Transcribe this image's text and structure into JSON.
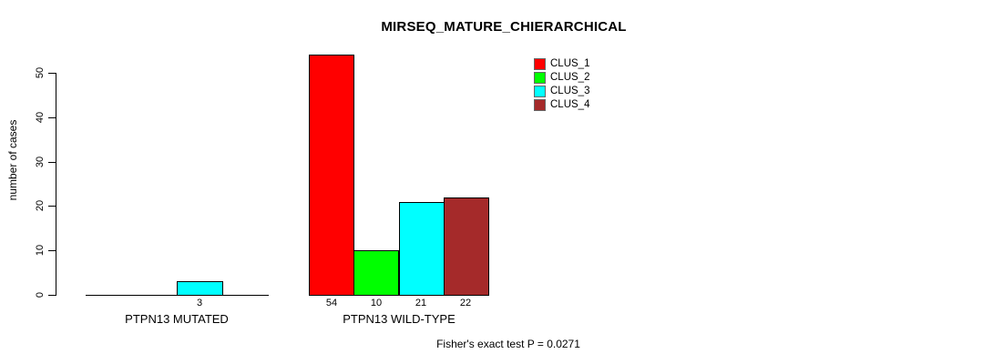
{
  "chart_data": {
    "type": "bar",
    "title": "MIRSEQ_MATURE_CHIERARCHICAL",
    "xlabel": "",
    "ylabel": "number of cases",
    "annotation": "Fisher's exact test P = 0.0271",
    "categories": [
      "PTPN13 MUTATED",
      "PTPN13 WILD-TYPE"
    ],
    "series": [
      {
        "name": "CLUS_1",
        "color": "#FF0000",
        "values": [
          0,
          54
        ]
      },
      {
        "name": "CLUS_2",
        "color": "#00FF00",
        "values": [
          0,
          10
        ]
      },
      {
        "name": "CLUS_3",
        "color": "#00FFFF",
        "values": [
          3,
          21
        ]
      },
      {
        "name": "CLUS_4",
        "color": "#A52A2A",
        "values": [
          0,
          22
        ]
      }
    ],
    "bar_value_labels": [
      [
        null,
        null,
        "3",
        null
      ],
      [
        "54",
        "10",
        "21",
        "22"
      ]
    ],
    "yticks": [
      "0",
      "10",
      "20",
      "30",
      "40",
      "50"
    ],
    "ylim": [
      0,
      54
    ],
    "grid": false,
    "legend_position": "top-right",
    "legend_entries": [
      "CLUS_1",
      "CLUS_2",
      "CLUS_3",
      "CLUS_4"
    ],
    "axis_color": "#000000",
    "bar_border_color": "#000000"
  }
}
